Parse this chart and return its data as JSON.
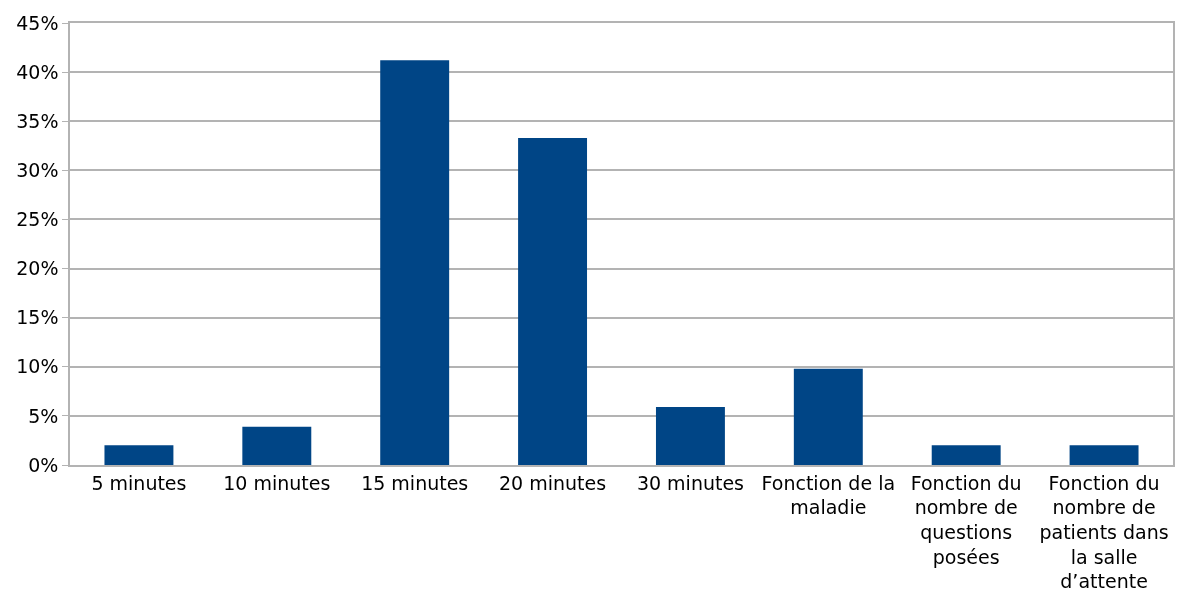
{
  "chart_data": {
    "type": "bar",
    "categories": [
      "5 minutes",
      "10 minutes",
      "15 minutes",
      "20 minutes",
      "30 minutes",
      "Fonction de la maladie",
      "Fonction du nombre de questions posées",
      "Fonction du nombre de patients dans la salle d’attente"
    ],
    "values": [
      2.0,
      3.9,
      41.2,
      33.3,
      5.9,
      9.8,
      2.0,
      2.0
    ],
    "color": "#004586",
    "ylim": [
      0,
      45
    ],
    "yticks": [
      {
        "value": 0,
        "label": "0%"
      },
      {
        "value": 5,
        "label": "5%"
      },
      {
        "value": 10,
        "label": "10%"
      },
      {
        "value": 15,
        "label": "15%"
      },
      {
        "value": 20,
        "label": "20%"
      },
      {
        "value": 25,
        "label": "25%"
      },
      {
        "value": 30,
        "label": "30%"
      },
      {
        "value": 35,
        "label": "35%"
      },
      {
        "value": 40,
        "label": "40%"
      },
      {
        "value": 45,
        "label": "45%"
      }
    ],
    "grid": "y"
  }
}
